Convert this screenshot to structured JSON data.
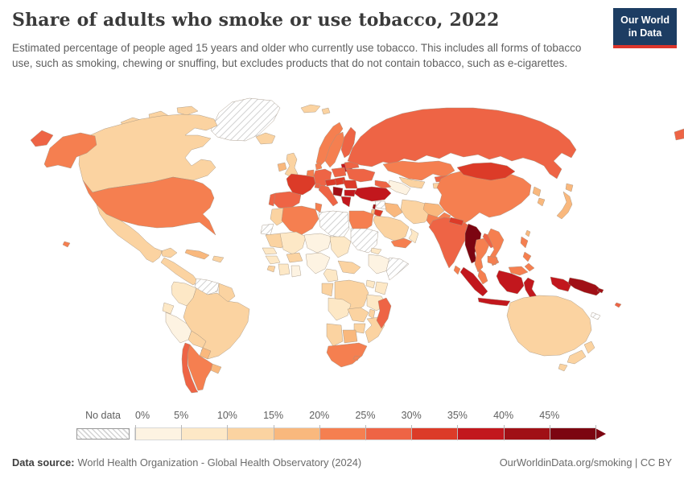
{
  "header": {
    "title": "Share of adults who smoke or use tobacco, 2022",
    "subtitle": "Estimated percentage of people aged 15 years and older who currently use tobacco. This includes all forms of tobacco use, such as smoking, chewing or snuffing, but excludes products that do not contain tobacco, such as e-cigarettes.",
    "logo": {
      "line1": "Our World",
      "line2": "in Data",
      "bg_color": "#1d3d63",
      "accent_color": "#dc352c"
    }
  },
  "legend": {
    "no_data_label": "No data",
    "ticks": [
      "0%",
      "5%",
      "10%",
      "15%",
      "20%",
      "25%",
      "30%",
      "35%",
      "40%",
      "45%"
    ],
    "bins": [
      {
        "range": "0-5%",
        "color": "#fdf3e2"
      },
      {
        "range": "5-10%",
        "color": "#fde8c6"
      },
      {
        "range": "10-15%",
        "color": "#fbd3a1"
      },
      {
        "range": "15-20%",
        "color": "#f9b87d"
      },
      {
        "range": "20-25%",
        "color": "#f57f50"
      },
      {
        "range": "25-30%",
        "color": "#ee6445"
      },
      {
        "range": "30-35%",
        "color": "#dc3b28"
      },
      {
        "range": "35-40%",
        "color": "#c2171d"
      },
      {
        "range": "40-45%",
        "color": "#a01016"
      },
      {
        "range": "45%+",
        "color": "#7c0511"
      }
    ]
  },
  "footer": {
    "source_label": "Data source:",
    "source_text": "World Health Organization - Global Health Observatory (2024)",
    "link_text": "OurWorldinData.org/smoking | CC BY"
  },
  "chart_data": {
    "type": "heatmap",
    "subtype": "choropleth-world-map",
    "title": "Share of adults who smoke or use tobacco, 2022",
    "unit": "% of people aged 15+ currently using tobacco",
    "year": 2022,
    "legend_position": "bottom",
    "legend_bins": [
      "0-5%",
      "5-10%",
      "10-15%",
      "15-20%",
      "20-25%",
      "25-30%",
      "30-35%",
      "35-40%",
      "40-45%",
      "45%+"
    ],
    "regions": {
      "Greenland": "No data",
      "Canada": "10-15%",
      "United States": "20-25%",
      "Mexico": "10-15%",
      "Central America": "10-15%",
      "Cuba": "15-20%",
      "Hispaniola": "10-15%",
      "Colombia": "5-10%",
      "Venezuela": "No data",
      "Guyana": "10-15%",
      "Ecuador": "5-10%",
      "Peru": "0-5%",
      "Brazil": "10-15%",
      "Bolivia": "10-15%",
      "Paraguay": "15-20%",
      "Uruguay": "15-20%",
      "Argentina": "20-25%",
      "Chile": "25-30%",
      "Iceland": "10-15%",
      "Ireland": "15-20%",
      "United Kingdom": "10-15%",
      "Norway": "20-25%",
      "Svalbard": "10-15%",
      "Sweden": "20-25%",
      "Finland": "25-30%",
      "Denmark": "20-25%",
      "Baltic States": "35-40%",
      "Belarus": "25-30%",
      "Ukraine": "25-30%",
      "Poland": "25-30%",
      "Germany": "25-30%",
      "Benelux": "20-25%",
      "France": "30-35%",
      "Spain": "25-30%",
      "Portugal": "25-30%",
      "Italy": "25-30%",
      "Switzerland": "25-30%",
      "Austria & Czechia": "30-35%",
      "Hungary & Slovakia": "30-35%",
      "Romania": "30-35%",
      "Serbia & Bosnia": "40-45%",
      "Bulgaria": "35-40%",
      "Greece": "35-40%",
      "Russia": "25-30%",
      "Kazakhstan": "20-25%",
      "Uzbekistan": "10-15%",
      "Turkmenistan": "0-5%",
      "Kyrgyzstan": "25-30%",
      "Tajikistan": "10-15%",
      "Caucasus": "25-30%",
      "Turkey": "35-40%",
      "Syria": "No data",
      "Lebanon": "40-45%",
      "Israel": "15-20%",
      "Jordan": "30-35%",
      "Iraq": "15-20%",
      "Saudi Arabia": "10-15%",
      "Yemen": "20-25%",
      "Oman": "5-10%",
      "Iran": "10-15%",
      "Afghanistan": "15-20%",
      "Pakistan": "20-25%",
      "India": "25-30%",
      "Nepal": "30-35%",
      "Bangladesh": "30-35%",
      "Sri Lanka": "20-25%",
      "China": "20-25%",
      "Mongolia": "30-35%",
      "North Korea": "15-20%",
      "South Korea": "15-20%",
      "Japan": "15-20%",
      "Taiwan": "15-20%",
      "Myanmar": "45%+",
      "Thailand": "20-25%",
      "Laos": "25-30%",
      "Vietnam": "20-25%",
      "Cambodia": "20-25%",
      "Malaysia": "20-25%",
      "Indonesia": "35-40%",
      "Philippines": "20-25%",
      "Papua New Guinea": "40-45%",
      "Timor-Leste": "40-45%",
      "Solomon Islands": "40-45%",
      "Fiji": "25-30%",
      "New Caledonia": "No data",
      "Morocco": "10-15%",
      "Western Sahara": "No data",
      "Algeria": "20-25%",
      "Tunisia": "20-25%",
      "Libya": "No data",
      "Egypt": "20-25%",
      "Mauritania": "10-15%",
      "Mali": "5-10%",
      "Niger": "0-5%",
      "Chad": "5-10%",
      "Sudan": "No data",
      "Eritrea": "5-10%",
      "Ethiopia": "0-5%",
      "Somalia": "No data",
      "Senegal": "5-10%",
      "Guinea": "5-10%",
      "Sierra Leone": "10-15%",
      "Cote d'Ivoire": "5-10%",
      "Ghana": "0-5%",
      "Burkina Faso": "10-15%",
      "Nigeria": "0-5%",
      "Cameroon": "5-10%",
      "Central African Republic": "10-15%",
      "DR Congo": "10-15%",
      "Congo": "10-15%",
      "Uganda": "5-10%",
      "Kenya": "5-10%",
      "Tanzania": "5-10%",
      "Angola": "5-10%",
      "Zambia": "10-15%",
      "Malawi": "10-15%",
      "Mozambique": "10-15%",
      "Zimbabwe": "10-15%",
      "Botswana": "15-20%",
      "Namibia": "10-15%",
      "South Africa": "20-25%",
      "Lesotho": "20-25%",
      "Madagascar": "25-30%",
      "Australia": "10-15%",
      "New Zealand": "10-15%"
    }
  }
}
